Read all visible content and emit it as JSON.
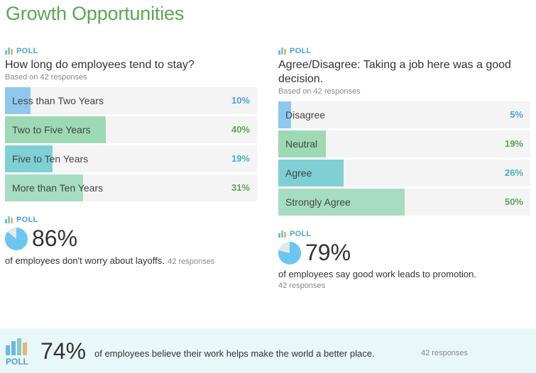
{
  "page": {
    "title": "Growth Opportunities"
  },
  "poll_label": "POLL",
  "poll1": {
    "question": "How long do employees tend to stay?",
    "based_on": "Based on 42 responses",
    "options": [
      {
        "label": "Less than Two Years",
        "pct": "10%",
        "value": 10,
        "color": "#8ec8ee",
        "pct_color": "#4ba5d6"
      },
      {
        "label": "Two to Five Years",
        "pct": "40%",
        "value": 40,
        "color": "#9dd9b4",
        "pct_color": "#5ba653"
      },
      {
        "label": "Five to Ten Years",
        "pct": "19%",
        "value": 19,
        "color": "#7fd0d4",
        "pct_color": "#45b3b8"
      },
      {
        "label": "More than Ten Years",
        "pct": "31%",
        "value": 31,
        "color": "#a6dcc0",
        "pct_color": "#5ba653"
      }
    ]
  },
  "poll2": {
    "question": "Agree/Disagree: Taking a job here was a good decision.",
    "based_on": "Based on 42 responses",
    "options": [
      {
        "label": "Disagree",
        "pct": "5%",
        "value": 5,
        "color": "#8ec8ee",
        "pct_color": "#4ba5d6"
      },
      {
        "label": "Neutral",
        "pct": "19%",
        "value": 19,
        "color": "#9dd9b4",
        "pct_color": "#5ba653"
      },
      {
        "label": "Agree",
        "pct": "26%",
        "value": 26,
        "color": "#7fd0d4",
        "pct_color": "#45b3b8"
      },
      {
        "label": "Strongly Agree",
        "pct": "50%",
        "value": 50,
        "color": "#a6dcc0",
        "pct_color": "#5ba653"
      }
    ]
  },
  "stat1": {
    "value": "86%",
    "fraction": 0.86,
    "text": "of employees don't worry about layoffs.",
    "responses": "42 responses"
  },
  "stat2": {
    "value": "79%",
    "fraction": 0.79,
    "text": "of employees say good work leads to promotion.",
    "responses": "42 responses"
  },
  "footer": {
    "value": "74%",
    "text": "of employees believe their work helps make the world a better place.",
    "responses": "42 responses",
    "poll_label": "POLL"
  },
  "colors": {
    "accent_green": "#5ba653",
    "accent_blue": "#4ba5d6",
    "pie_fill": "#6cc6f2",
    "pie_bg": "#e6e6e6"
  }
}
